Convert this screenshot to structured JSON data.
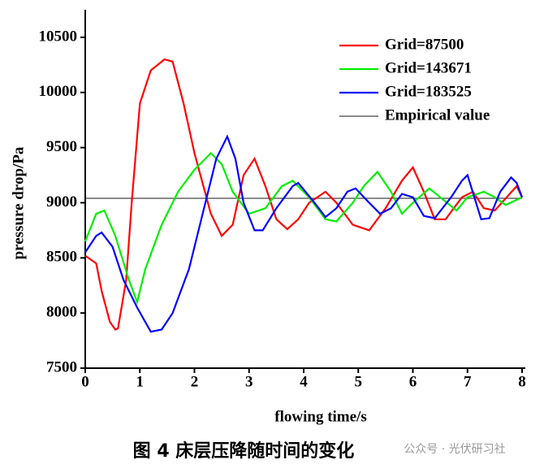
{
  "chart_data": {
    "type": "line",
    "xlabel": "flowing time/s",
    "ylabel": "pressure drop/Pa",
    "xlim": [
      0,
      8
    ],
    "ylim": [
      7500,
      10750
    ],
    "xticks": [
      0,
      1,
      2,
      3,
      4,
      5,
      6,
      7,
      8
    ],
    "yticks": [
      7500,
      8000,
      8500,
      9000,
      9500,
      10000,
      10500
    ],
    "series": [
      {
        "name": "Grid=87500",
        "color": "#ff0000",
        "x": [
          0,
          0.2,
          0.3,
          0.45,
          0.55,
          0.6,
          0.75,
          0.85,
          1.0,
          1.2,
          1.45,
          1.6,
          1.8,
          2.0,
          2.3,
          2.5,
          2.7,
          2.9,
          3.1,
          3.3,
          3.5,
          3.7,
          3.9,
          4.1,
          4.4,
          4.6,
          4.9,
          5.2,
          5.5,
          5.8,
          6.0,
          6.2,
          6.4,
          6.6,
          6.9,
          7.1,
          7.3,
          7.5,
          7.9,
          8.0
        ],
        "values": [
          8520,
          8450,
          8200,
          7920,
          7850,
          7860,
          8300,
          9000,
          9900,
          10200,
          10300,
          10280,
          9900,
          9450,
          8900,
          8700,
          8800,
          9250,
          9400,
          9150,
          8850,
          8760,
          8850,
          9000,
          9100,
          9000,
          8800,
          8750,
          8950,
          9200,
          9320,
          9100,
          8850,
          8850,
          9050,
          9100,
          8950,
          8930,
          9150,
          9050
        ]
      },
      {
        "name": "Grid=143671",
        "color": "#00ee00",
        "x": [
          0,
          0.2,
          0.35,
          0.55,
          0.8,
          0.95,
          1.1,
          1.4,
          1.7,
          2.0,
          2.3,
          2.5,
          2.7,
          3.0,
          3.3,
          3.6,
          3.8,
          4.1,
          4.4,
          4.6,
          4.9,
          5.1,
          5.35,
          5.6,
          5.8,
          6.0,
          6.3,
          6.5,
          6.8,
          7.0,
          7.3,
          7.5,
          7.7,
          8.0
        ],
        "values": [
          8650,
          8900,
          8930,
          8700,
          8300,
          8100,
          8400,
          8800,
          9100,
          9300,
          9450,
          9350,
          9100,
          8900,
          8950,
          9150,
          9200,
          9050,
          8850,
          8830,
          9000,
          9150,
          9280,
          9100,
          8900,
          9000,
          9130,
          9050,
          8930,
          9050,
          9100,
          9050,
          8980,
          9050
        ]
      },
      {
        "name": "Grid=183525",
        "color": "#0000ff",
        "x": [
          0,
          0.2,
          0.3,
          0.5,
          0.7,
          0.95,
          1.2,
          1.4,
          1.6,
          1.9,
          2.15,
          2.4,
          2.6,
          2.75,
          2.9,
          3.1,
          3.25,
          3.5,
          3.8,
          3.9,
          4.2,
          4.4,
          4.6,
          4.8,
          4.95,
          5.2,
          5.4,
          5.6,
          5.8,
          6.0,
          6.2,
          6.4,
          6.7,
          6.9,
          7.0,
          7.25,
          7.4,
          7.6,
          7.8,
          7.9,
          8.0
        ],
        "values": [
          8550,
          8700,
          8730,
          8600,
          8300,
          8050,
          7830,
          7850,
          8000,
          8400,
          8900,
          9400,
          9600,
          9400,
          9000,
          8750,
          8750,
          8950,
          9150,
          9180,
          9000,
          8870,
          8950,
          9100,
          9130,
          9000,
          8900,
          8950,
          9080,
          9050,
          8880,
          8860,
          9050,
          9200,
          9250,
          8850,
          8860,
          9100,
          9230,
          9180,
          9050
        ]
      }
    ],
    "reference_line": {
      "name": "Empirical value",
      "color": "#444444",
      "value": 9040
    }
  },
  "caption": "图 4  床层压降随时间的变化",
  "watermark": "公众号 · 光伏研习社"
}
